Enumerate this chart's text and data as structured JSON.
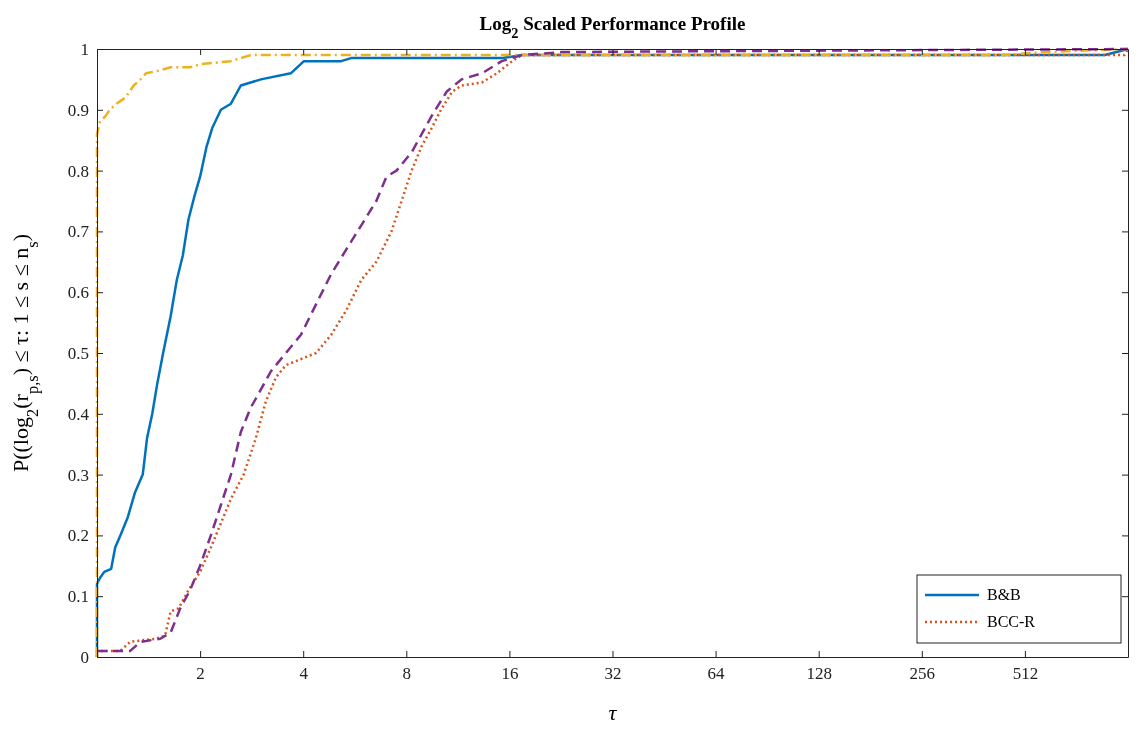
{
  "chart_data": {
    "type": "line",
    "title": "Log$_{2}$ Scaled Performance Profile",
    "xlabel": "τ",
    "ylabel": "P((log$_{2}$(r$_{p,s}$) ≤ τ: 1 ≤ s ≤ n$_{s}$)",
    "log": "x",
    "xlim": [
      1,
      1024
    ],
    "ylim": [
      0,
      1
    ],
    "xticks": [
      2,
      4,
      8,
      16,
      32,
      64,
      128,
      256,
      512
    ],
    "yticks": [
      0,
      0.1,
      0.2,
      0.3,
      0.4,
      0.5,
      0.6,
      0.7,
      0.8,
      0.9,
      1
    ],
    "grid": false,
    "legend": "bottom right",
    "series": [
      {
        "name": "B&B",
        "color": "#0072bd",
        "line_style": "solid",
        "x": [
          1,
          1,
          1.02,
          1.05,
          1.1,
          1.13,
          1.17,
          1.23,
          1.29,
          1.36,
          1.4,
          1.45,
          1.5,
          1.56,
          1.64,
          1.71,
          1.78,
          1.85,
          1.93,
          2.0,
          2.09,
          2.17,
          2.3,
          2.46,
          2.63,
          3.01,
          3.68,
          4.02,
          5.16,
          5.52,
          15.2,
          17.4,
          877,
          1024
        ],
        "values": [
          0,
          0.12,
          0.13,
          0.14,
          0.145,
          0.18,
          0.2,
          0.23,
          0.27,
          0.3,
          0.36,
          0.4,
          0.45,
          0.5,
          0.56,
          0.62,
          0.66,
          0.72,
          0.76,
          0.79,
          0.84,
          0.87,
          0.9,
          0.91,
          0.94,
          0.95,
          0.96,
          0.98,
          0.98,
          0.985,
          0.985,
          0.99,
          0.99,
          1
        ]
      },
      {
        "name": "BCC-R",
        "color": "#d95319",
        "line_style": "dotted",
        "x": [
          1,
          1,
          1.17,
          1.25,
          1.48,
          1.58,
          1.64,
          1.73,
          1.85,
          2.0,
          2.15,
          2.3,
          2.46,
          2.68,
          2.91,
          3.11,
          3.33,
          3.56,
          3.94,
          4.36,
          4.83,
          5.34,
          5.91,
          6.54,
          7.24,
          7.75,
          8.29,
          8.87,
          9.49,
          10.1,
          10.9,
          11.6,
          13.3,
          14.7,
          16.3,
          17.4,
          1000,
          1024
        ],
        "values": [
          0,
          0.01,
          0.01,
          0.025,
          0.03,
          0.035,
          0.075,
          0.08,
          0.11,
          0.14,
          0.18,
          0.22,
          0.26,
          0.3,
          0.36,
          0.42,
          0.46,
          0.48,
          0.49,
          0.5,
          0.53,
          0.57,
          0.62,
          0.65,
          0.7,
          0.75,
          0.8,
          0.84,
          0.87,
          0.9,
          0.93,
          0.94,
          0.945,
          0.96,
          0.98,
          0.99,
          0.99,
          1
        ]
      },
      {
        "color": "#edb120",
        "line_style": "dashdot",
        "x": [
          1,
          1,
          1.02,
          1.06,
          1.09,
          1.14,
          1.21,
          1.28,
          1.34,
          1.39,
          1.53,
          1.64,
          1.87,
          2.0,
          2.46,
          2.81,
          446,
          584,
          1024
        ],
        "values": [
          0,
          0.86,
          0.88,
          0.89,
          0.9,
          0.91,
          0.92,
          0.94,
          0.95,
          0.96,
          0.965,
          0.97,
          0.97,
          0.975,
          0.98,
          0.99,
          0.99,
          0.995,
          1
        ]
      },
      {
        "color": "#7e2f8e",
        "line_style": "dashed",
        "x": [
          1,
          1.25,
          1.34,
          1.53,
          1.64,
          1.75,
          1.87,
          2.0,
          2.15,
          2.3,
          2.46,
          2.63,
          2.81,
          3.01,
          3.22,
          3.56,
          3.94,
          4.36,
          4.83,
          5.34,
          5.91,
          6.54,
          7.0,
          7.49,
          8.29,
          8.87,
          9.49,
          10.5,
          11.6,
          13.3,
          15.2,
          17.4,
          22.8,
          1024
        ],
        "values": [
          0.01,
          0.01,
          0.025,
          0.03,
          0.04,
          0.08,
          0.11,
          0.15,
          0.2,
          0.25,
          0.3,
          0.37,
          0.41,
          0.44,
          0.47,
          0.5,
          0.53,
          0.58,
          0.63,
          0.67,
          0.71,
          0.75,
          0.79,
          0.8,
          0.83,
          0.86,
          0.89,
          0.93,
          0.95,
          0.96,
          0.98,
          0.99,
          0.995,
          1
        ]
      }
    ]
  }
}
